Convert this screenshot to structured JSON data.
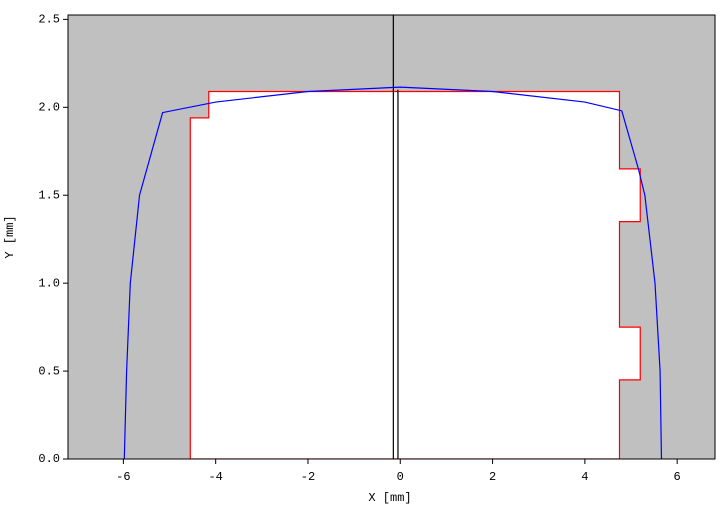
{
  "chart_data": {
    "type": "line",
    "xlabel": "X [mm]",
    "ylabel": "Y [mm]",
    "background": "#c0c0c0",
    "xlim": [
      -7.2,
      6.82
    ],
    "ylim": [
      0,
      2.525
    ],
    "xticks": [
      -6,
      -4,
      -2,
      0,
      2,
      4,
      6
    ],
    "yticks": [
      {
        "value": 0,
        "label": "0.0"
      },
      0.5,
      {
        "value": 1,
        "label": "1.0"
      },
      1.5,
      {
        "value": 2,
        "label": "2.0"
      },
      2.5
    ],
    "series": [
      {
        "color": "#ff0000",
        "fill": "#ffffff",
        "x": [
          -4.55,
          -4.55,
          -4.15,
          -4.15,
          4.75,
          4.75,
          5.2,
          5.2,
          4.75,
          4.75,
          5.2,
          5.2,
          4.75,
          4.75
        ],
        "y": [
          0,
          1.94,
          1.94,
          2.09,
          2.09,
          1.65,
          1.65,
          1.35,
          1.35,
          0.75,
          0.75,
          0.45,
          0.45,
          0
        ]
      },
      {
        "color": "#000000",
        "x": [
          -0.15,
          -0.15
        ],
        "y": [
          0,
          2.525
        ]
      },
      {
        "color": "#000000",
        "x": [
          -0.05,
          -0.05
        ],
        "y": [
          0,
          2.1
        ]
      },
      {
        "color": "#0000ff",
        "x": [
          -5.98,
          -5.93,
          -5.85,
          -5.65,
          -5.15,
          -4,
          -2,
          0,
          2,
          4,
          4.8,
          5.16,
          5.3,
          5.52,
          5.63,
          5.66
        ],
        "y": [
          0,
          0.5,
          1.0,
          1.5,
          1.97,
          2.03,
          2.09,
          2.115,
          2.09,
          2.03,
          1.98,
          1.65,
          1.5,
          1.0,
          0.5,
          0
        ]
      }
    ]
  }
}
